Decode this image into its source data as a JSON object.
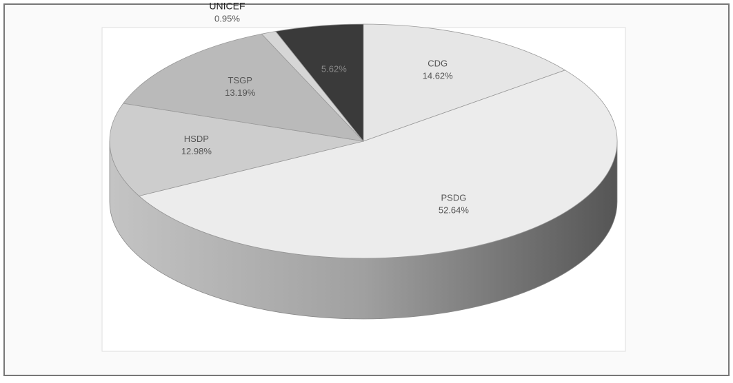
{
  "chart_data": {
    "type": "pie",
    "categories": [
      "CDG",
      "PSDG",
      "HSDP",
      "TSGP",
      "UNICEF",
      null
    ],
    "values": [
      14.62,
      52.64,
      12.98,
      13.19,
      0.95,
      5.62
    ],
    "value_labels": [
      "14.62%",
      "52.64%",
      "12.98%",
      "13.19%",
      "0.95%",
      "5.62%"
    ],
    "colors": [
      "#e6e6e6",
      "#ececec",
      "#cdcdcd",
      "#bababa",
      "#d6d6d6",
      "#3a3a3a"
    ],
    "three_d": true
  }
}
